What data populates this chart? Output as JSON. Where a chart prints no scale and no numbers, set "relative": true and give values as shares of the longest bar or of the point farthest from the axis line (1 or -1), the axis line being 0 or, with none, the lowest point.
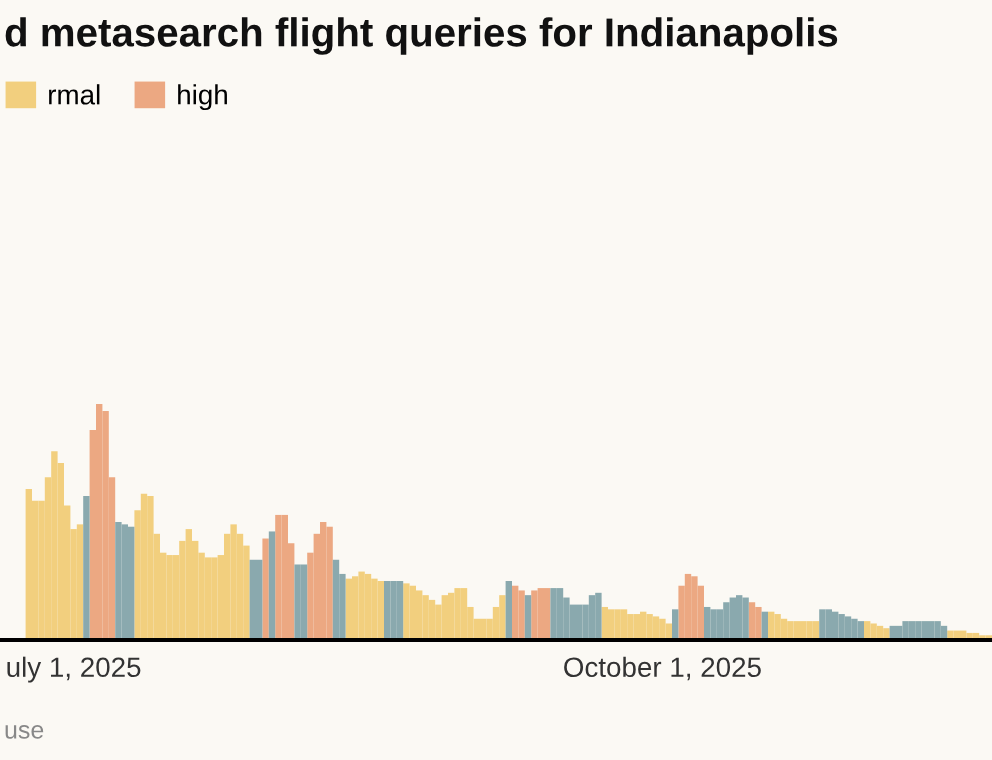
{
  "chart_data": {
    "type": "bar",
    "title": "d metasearch flight queries for Indianapolis",
    "relative": true,
    "legend": "top left",
    "annotations": [
      "use"
    ],
    "xlim": [
      "2025-06-19T12:00",
      "2025-11-21T12:00"
    ],
    "xticks": [
      {
        "value": "2025-07-01",
        "label": "uly 1, 2025"
      },
      {
        "value": "2025-10-01",
        "label": "October 1, 2025"
      }
    ],
    "x": [
      "2025-06-24",
      "2025-06-25",
      "2025-06-26",
      "2025-06-27",
      "2025-06-28",
      "2025-06-29",
      "2025-06-30",
      "2025-07-01",
      "2025-07-02",
      "2025-07-03",
      "2025-07-04",
      "2025-07-05",
      "2025-07-06",
      "2025-07-07",
      "2025-07-08",
      "2025-07-09",
      "2025-07-10",
      "2025-07-11",
      "2025-07-12",
      "2025-07-13",
      "2025-07-14",
      "2025-07-15",
      "2025-07-16",
      "2025-07-17",
      "2025-07-18",
      "2025-07-19",
      "2025-07-20",
      "2025-07-21",
      "2025-07-22",
      "2025-07-23",
      "2025-07-24",
      "2025-07-25",
      "2025-07-26",
      "2025-07-27",
      "2025-07-28",
      "2025-07-29",
      "2025-07-30",
      "2025-07-31",
      "2025-08-01",
      "2025-08-02",
      "2025-08-03",
      "2025-08-04",
      "2025-08-05",
      "2025-08-06",
      "2025-08-07",
      "2025-08-08",
      "2025-08-09",
      "2025-08-10",
      "2025-08-11",
      "2025-08-12",
      "2025-08-13",
      "2025-08-14",
      "2025-08-15",
      "2025-08-16",
      "2025-08-17",
      "2025-08-18",
      "2025-08-19",
      "2025-08-20",
      "2025-08-21",
      "2025-08-22",
      "2025-08-23",
      "2025-08-24",
      "2025-08-25",
      "2025-08-26",
      "2025-08-27",
      "2025-08-28",
      "2025-08-29",
      "2025-08-30",
      "2025-08-31",
      "2025-09-01",
      "2025-09-02",
      "2025-09-03",
      "2025-09-04",
      "2025-09-05",
      "2025-09-06",
      "2025-09-07",
      "2025-09-08",
      "2025-09-09",
      "2025-09-10",
      "2025-09-11",
      "2025-09-12",
      "2025-09-13",
      "2025-09-14",
      "2025-09-15",
      "2025-09-16",
      "2025-09-17",
      "2025-09-18",
      "2025-09-19",
      "2025-09-20",
      "2025-09-21",
      "2025-09-22",
      "2025-09-23",
      "2025-09-24",
      "2025-09-25",
      "2025-09-26",
      "2025-09-27",
      "2025-09-28",
      "2025-09-29",
      "2025-09-30",
      "2025-10-01",
      "2025-10-02",
      "2025-10-03",
      "2025-10-04",
      "2025-10-05",
      "2025-10-06",
      "2025-10-07",
      "2025-10-08",
      "2025-10-09",
      "2025-10-10",
      "2025-10-11",
      "2025-10-12",
      "2025-10-13",
      "2025-10-14",
      "2025-10-15",
      "2025-10-16",
      "2025-10-17",
      "2025-10-18",
      "2025-10-19",
      "2025-10-20",
      "2025-10-21",
      "2025-10-22",
      "2025-10-23",
      "2025-10-24",
      "2025-10-25",
      "2025-10-26",
      "2025-10-27",
      "2025-10-28",
      "2025-10-29",
      "2025-10-30",
      "2025-10-31",
      "2025-11-01",
      "2025-11-02",
      "2025-11-03",
      "2025-11-04",
      "2025-11-05",
      "2025-11-06",
      "2025-11-07",
      "2025-11-08",
      "2025-11-09",
      "2025-11-10",
      "2025-11-11",
      "2025-11-12",
      "2025-11-13",
      "2025-11-14",
      "2025-11-15",
      "2025-11-16",
      "2025-11-17",
      "2025-11-18",
      "2025-11-19",
      "2025-11-20",
      "2025-11-21"
    ],
    "series": [
      {
        "name": "rmal",
        "color": "#f2cf7e",
        "values": [
          0.64,
          0.59,
          0.59,
          0.69,
          0.8,
          0.75,
          0.57,
          0.47,
          0.49,
          null,
          null,
          null,
          null,
          null,
          null,
          null,
          null,
          0.55,
          0.62,
          0.61,
          0.45,
          0.37,
          0.36,
          0.36,
          0.42,
          0.47,
          0.42,
          0.37,
          0.35,
          0.35,
          0.36,
          0.45,
          0.49,
          0.45,
          0.4,
          null,
          null,
          null,
          null,
          null,
          null,
          null,
          null,
          null,
          null,
          null,
          null,
          null,
          null,
          null,
          0.26,
          0.27,
          0.29,
          0.28,
          0.26,
          0.25,
          null,
          null,
          null,
          0.24,
          0.23,
          0.21,
          0.19,
          0.17,
          0.15,
          0.19,
          0.2,
          0.22,
          0.22,
          0.14,
          0.09,
          0.09,
          0.09,
          0.14,
          0.19,
          null,
          null,
          null,
          null,
          null,
          null,
          null,
          null,
          null,
          null,
          null,
          null,
          null,
          null,
          null,
          0.14,
          0.13,
          0.13,
          0.13,
          0.11,
          0.11,
          0.12,
          0.11,
          0.1,
          0.09,
          0.07,
          null,
          null,
          null,
          null,
          null,
          null,
          null,
          null,
          null,
          null,
          null,
          null,
          null,
          null,
          null,
          0.12,
          0.11,
          0.09,
          0.08,
          0.08,
          0.08,
          0.08,
          0.08,
          null,
          null,
          null,
          null,
          null,
          null,
          null,
          0.08,
          0.07,
          0.06,
          0.05,
          null,
          null,
          null,
          null,
          null,
          null,
          null,
          null,
          null,
          0.04,
          0.04,
          0.04,
          0.03,
          0.03,
          0.02,
          0.02
        ]
      },
      {
        "name": "high",
        "color": "#eca882",
        "values": [
          null,
          null,
          null,
          null,
          null,
          null,
          null,
          null,
          null,
          null,
          0.89,
          1,
          0.97,
          0.69,
          null,
          null,
          null,
          null,
          null,
          null,
          null,
          null,
          null,
          null,
          null,
          null,
          null,
          null,
          null,
          null,
          null,
          null,
          null,
          null,
          null,
          null,
          null,
          0.43,
          null,
          0.53,
          0.53,
          0.41,
          null,
          null,
          0.37,
          0.45,
          0.5,
          0.48,
          null,
          null,
          null,
          null,
          null,
          null,
          null,
          null,
          null,
          null,
          null,
          null,
          null,
          null,
          null,
          null,
          null,
          null,
          null,
          null,
          null,
          null,
          null,
          null,
          null,
          null,
          null,
          null,
          0.23,
          0.21,
          null,
          0.21,
          0.22,
          0.22,
          null,
          null,
          null,
          null,
          null,
          null,
          null,
          null,
          null,
          null,
          null,
          null,
          null,
          null,
          null,
          null,
          null,
          null,
          null,
          null,
          0.23,
          0.28,
          0.27,
          0.23,
          null,
          null,
          null,
          null,
          null,
          null,
          null,
          0.16,
          0.14,
          null,
          null,
          null,
          null,
          null,
          null,
          null,
          null,
          null,
          null,
          null,
          null,
          null,
          null,
          null,
          null,
          null,
          null,
          null,
          null,
          null,
          null,
          null,
          null,
          null,
          null,
          null,
          null,
          null,
          null,
          null,
          null,
          null,
          null,
          null,
          null
        ]
      },
      {
        "color": "#8aa9ae",
        "values": [
          null,
          null,
          null,
          null,
          null,
          null,
          null,
          null,
          null,
          0.61,
          null,
          null,
          null,
          null,
          0.5,
          0.49,
          0.48,
          null,
          null,
          null,
          null,
          null,
          null,
          null,
          null,
          null,
          null,
          null,
          null,
          null,
          null,
          null,
          null,
          null,
          null,
          0.34,
          0.34,
          null,
          0.46,
          null,
          null,
          null,
          0.32,
          0.32,
          null,
          null,
          null,
          null,
          0.34,
          0.28,
          null,
          null,
          null,
          null,
          null,
          null,
          0.25,
          0.25,
          0.25,
          null,
          null,
          null,
          null,
          null,
          null,
          null,
          null,
          null,
          null,
          null,
          null,
          null,
          null,
          null,
          null,
          0.25,
          null,
          null,
          0.19,
          null,
          null,
          null,
          0.22,
          0.22,
          0.18,
          0.15,
          0.15,
          0.15,
          0.19,
          0.2,
          null,
          null,
          null,
          null,
          null,
          null,
          null,
          null,
          null,
          null,
          null,
          0.13,
          null,
          null,
          null,
          null,
          0.14,
          0.13,
          0.13,
          0.16,
          0.18,
          0.19,
          0.18,
          null,
          null,
          0.12,
          null,
          null,
          null,
          null,
          null,
          null,
          null,
          null,
          0.13,
          0.13,
          0.12,
          0.11,
          0.1,
          0.09,
          0.08,
          null,
          null,
          null,
          null,
          0.06,
          0.06,
          0.08,
          0.08,
          0.08,
          0.08,
          0.08,
          0.08,
          0.06,
          null,
          null,
          null,
          null,
          null,
          null,
          null
        ]
      }
    ]
  }
}
